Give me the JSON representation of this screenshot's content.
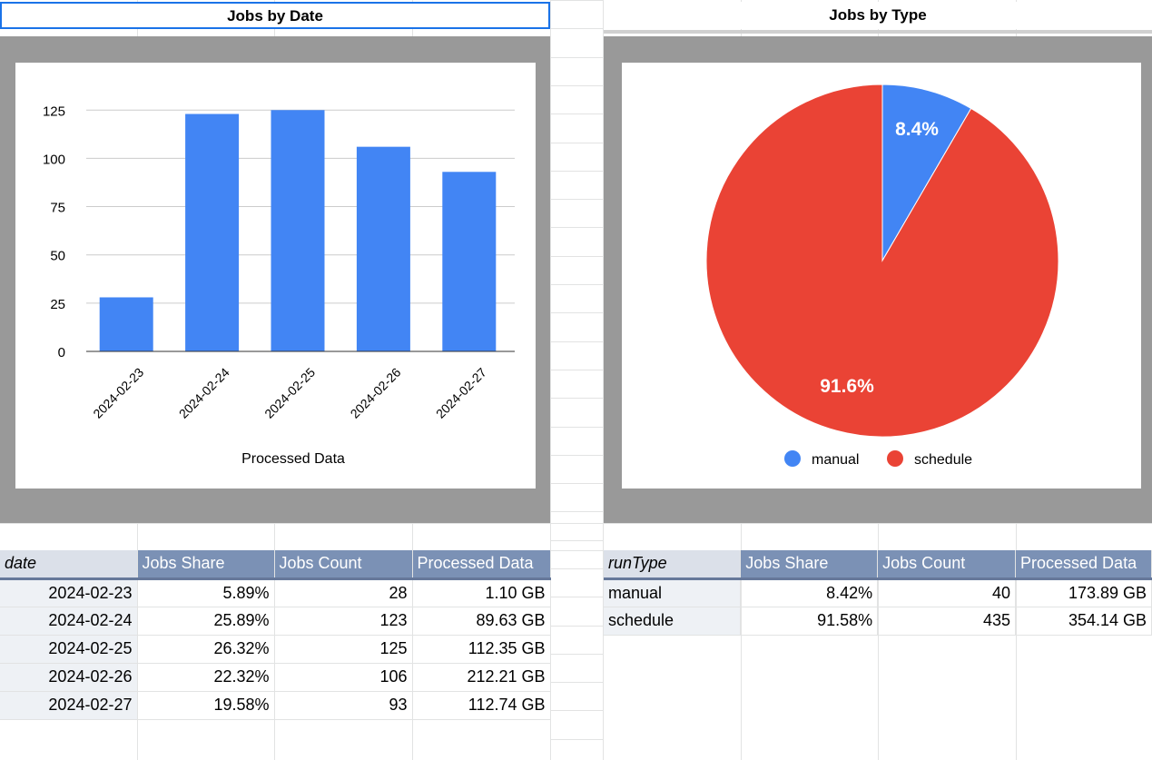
{
  "sections": {
    "left_title": "Jobs by Date",
    "right_title": "Jobs by Type"
  },
  "bar_chart": {
    "chart_data": {
      "type": "bar",
      "categories": [
        "2024-02-23",
        "2024-02-24",
        "2024-02-25",
        "2024-02-26",
        "2024-02-27"
      ],
      "values": [
        28,
        123,
        125,
        106,
        93
      ],
      "ylim": [
        0,
        135
      ],
      "yticks": [
        0,
        25,
        50,
        75,
        100,
        125
      ],
      "xlabel": "Processed Data",
      "grid": true,
      "color": "#4285f4"
    }
  },
  "pie_chart": {
    "chart_data": {
      "type": "pie",
      "labels": [
        "manual",
        "schedule"
      ],
      "values": [
        8.4,
        91.6
      ],
      "data_labels": [
        "8.4%",
        "91.6%"
      ],
      "colors": [
        "#4285f4",
        "#ea4335"
      ],
      "legend": "bottom"
    }
  },
  "table_left": {
    "headers": [
      "date",
      "Jobs Share",
      "Jobs Count",
      "Processed Data"
    ],
    "rows": [
      [
        "2024-02-23",
        "5.89%",
        "28",
        "1.10 GB"
      ],
      [
        "2024-02-24",
        "25.89%",
        "123",
        "89.63 GB"
      ],
      [
        "2024-02-25",
        "26.32%",
        "125",
        "112.35 GB"
      ],
      [
        "2024-02-26",
        "22.32%",
        "106",
        "212.21 GB"
      ],
      [
        "2024-02-27",
        "19.58%",
        "93",
        "112.74 GB"
      ]
    ]
  },
  "table_right": {
    "headers": [
      "runType",
      "Jobs Share",
      "Jobs Count",
      "Processed Data"
    ],
    "rows": [
      [
        "manual",
        "8.42%",
        "40",
        "173.89 GB"
      ],
      [
        "schedule",
        "91.58%",
        "435",
        "354.14 GB"
      ]
    ]
  }
}
